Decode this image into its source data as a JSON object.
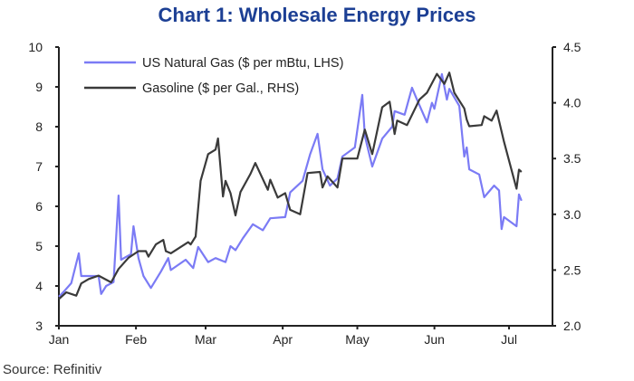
{
  "chart_data": {
    "type": "line",
    "title": "Chart 1: Wholesale Energy Prices",
    "source": "Source: Refinitiv",
    "x_ticks": [
      "Jan",
      "Feb",
      "Mar",
      "Apr",
      "May",
      "Jun",
      "Jul"
    ],
    "y_left": {
      "lim": [
        3,
        10
      ],
      "ticks": [
        "3",
        "4",
        "5",
        "6",
        "7",
        "8",
        "9",
        "10"
      ]
    },
    "y_right": {
      "lim": [
        2.0,
        4.5
      ],
      "ticks": [
        "2.0",
        "2.5",
        "3.0",
        "3.5",
        "4.0",
        "4.5"
      ]
    },
    "grid": false,
    "legend_position": "top-left",
    "series": [
      {
        "name": "US Natural Gas ($ per mBtu, LHS)",
        "axis": "left",
        "color": "#7b7bf5",
        "points": [
          [
            "01-01",
            3.73
          ],
          [
            "01-03",
            3.86
          ],
          [
            "01-06",
            4.07
          ],
          [
            "01-09",
            4.82
          ],
          [
            "01-10",
            4.25
          ],
          [
            "01-17",
            4.25
          ],
          [
            "01-18",
            3.8
          ],
          [
            "01-20",
            4.0
          ],
          [
            "01-23",
            4.1
          ],
          [
            "01-25",
            6.27
          ],
          [
            "01-26",
            4.66
          ],
          [
            "01-30",
            4.8
          ],
          [
            "01-31",
            5.5
          ],
          [
            "02-02",
            4.7
          ],
          [
            "02-04",
            4.25
          ],
          [
            "02-07",
            3.95
          ],
          [
            "02-11",
            4.36
          ],
          [
            "02-14",
            4.7
          ],
          [
            "02-15",
            4.4
          ],
          [
            "02-21",
            4.66
          ],
          [
            "02-24",
            4.45
          ],
          [
            "02-26",
            4.98
          ],
          [
            "03-02",
            4.6
          ],
          [
            "03-05",
            4.7
          ],
          [
            "03-09",
            4.6
          ],
          [
            "03-11",
            5.0
          ],
          [
            "03-13",
            4.9
          ],
          [
            "03-16",
            5.2
          ],
          [
            "03-20",
            5.55
          ],
          [
            "03-24",
            5.4
          ],
          [
            "03-27",
            5.7
          ],
          [
            "04-02",
            5.73
          ],
          [
            "04-04",
            6.35
          ],
          [
            "04-09",
            6.64
          ],
          [
            "04-12",
            7.3
          ],
          [
            "04-15",
            7.82
          ],
          [
            "04-17",
            6.93
          ],
          [
            "04-20",
            6.52
          ],
          [
            "04-23",
            6.7
          ],
          [
            "04-25",
            7.25
          ],
          [
            "04-30",
            7.48
          ],
          [
            "05-03",
            8.8
          ],
          [
            "05-04",
            7.77
          ],
          [
            "05-07",
            7.0
          ],
          [
            "05-11",
            7.7
          ],
          [
            "05-15",
            8.0
          ],
          [
            "05-16",
            8.39
          ],
          [
            "05-20",
            8.3
          ],
          [
            "05-23",
            8.98
          ],
          [
            "05-25",
            8.68
          ],
          [
            "05-29",
            8.11
          ],
          [
            "05-31",
            8.6
          ],
          [
            "06-01",
            8.45
          ],
          [
            "06-04",
            9.32
          ],
          [
            "06-06",
            8.68
          ],
          [
            "06-07",
            8.95
          ],
          [
            "06-11",
            8.52
          ],
          [
            "06-13",
            7.25
          ],
          [
            "06-14",
            7.48
          ],
          [
            "06-15",
            6.93
          ],
          [
            "06-19",
            6.8
          ],
          [
            "06-21",
            6.23
          ],
          [
            "06-25",
            6.52
          ],
          [
            "06-27",
            6.4
          ],
          [
            "06-28",
            5.43
          ],
          [
            "06-29",
            5.73
          ],
          [
            "07-04",
            5.5
          ],
          [
            "07-05",
            6.3
          ],
          [
            "07-06",
            6.14
          ]
        ]
      },
      {
        "name": "Gasoline ($ per Gal., RHS)",
        "axis": "right",
        "color": "#3a3a3a",
        "points": [
          [
            "01-01",
            2.24
          ],
          [
            "01-04",
            2.3
          ],
          [
            "01-08",
            2.27
          ],
          [
            "01-10",
            2.38
          ],
          [
            "01-13",
            2.42
          ],
          [
            "01-17",
            2.45
          ],
          [
            "01-22",
            2.39
          ],
          [
            "01-25",
            2.51
          ],
          [
            "01-29",
            2.61
          ],
          [
            "02-02",
            2.67
          ],
          [
            "02-05",
            2.67
          ],
          [
            "02-06",
            2.62
          ],
          [
            "02-09",
            2.73
          ],
          [
            "02-12",
            2.77
          ],
          [
            "02-13",
            2.67
          ],
          [
            "02-15",
            2.65
          ],
          [
            "02-22",
            2.75
          ],
          [
            "02-23",
            2.73
          ],
          [
            "02-25",
            2.8
          ],
          [
            "02-27",
            3.3
          ],
          [
            "03-02",
            3.54
          ],
          [
            "03-05",
            3.58
          ],
          [
            "03-06",
            3.68
          ],
          [
            "03-08",
            3.16
          ],
          [
            "03-09",
            3.3
          ],
          [
            "03-11",
            3.19
          ],
          [
            "03-13",
            2.99
          ],
          [
            "03-15",
            3.2
          ],
          [
            "03-19",
            3.36
          ],
          [
            "03-21",
            3.46
          ],
          [
            "03-26",
            3.22
          ],
          [
            "03-27",
            3.31
          ],
          [
            "03-30",
            3.15
          ],
          [
            "04-02",
            3.19
          ],
          [
            "04-04",
            3.04
          ],
          [
            "04-08",
            3.0
          ],
          [
            "04-11",
            3.37
          ],
          [
            "04-16",
            3.38
          ],
          [
            "04-17",
            3.24
          ],
          [
            "04-19",
            3.34
          ],
          [
            "04-23",
            3.24
          ],
          [
            "04-25",
            3.5
          ],
          [
            "05-01",
            3.5
          ],
          [
            "05-04",
            3.76
          ],
          [
            "05-07",
            3.54
          ],
          [
            "05-11",
            3.96
          ],
          [
            "05-14",
            4.01
          ],
          [
            "05-16",
            3.72
          ],
          [
            "05-17",
            3.84
          ],
          [
            "05-21",
            3.8
          ],
          [
            "05-26",
            4.03
          ],
          [
            "05-29",
            4.09
          ],
          [
            "06-02",
            4.26
          ],
          [
            "06-05",
            4.17
          ],
          [
            "06-07",
            4.27
          ],
          [
            "06-09",
            4.09
          ],
          [
            "06-13",
            3.95
          ],
          [
            "06-14",
            3.85
          ],
          [
            "06-15",
            3.79
          ],
          [
            "06-20",
            3.8
          ],
          [
            "06-21",
            3.88
          ],
          [
            "06-24",
            3.84
          ],
          [
            "06-26",
            3.93
          ],
          [
            "06-29",
            3.65
          ],
          [
            "07-04",
            3.23
          ],
          [
            "07-05",
            3.4
          ],
          [
            "07-06",
            3.38
          ]
        ]
      }
    ]
  }
}
